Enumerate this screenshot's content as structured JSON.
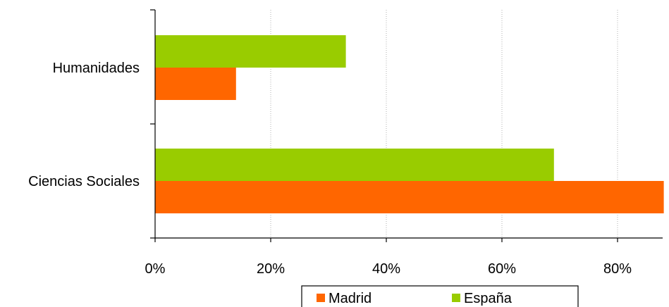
{
  "chart_data": {
    "type": "bar",
    "orientation": "horizontal",
    "categories": [
      "Humanidades",
      "Ciencias Sociales"
    ],
    "series": [
      {
        "name": "Madrid",
        "color": "#ff6600",
        "values": [
          14,
          88
        ]
      },
      {
        "name": "España",
        "color": "#99cc00",
        "values": [
          33,
          69
        ]
      }
    ],
    "xlim": [
      0,
      88
    ],
    "x_ticks": [
      0,
      20,
      40,
      60,
      80
    ],
    "x_tick_labels": [
      "0%",
      "20%",
      "40%",
      "60%",
      "80%"
    ],
    "grid": "vertical dotted",
    "legend_position": "bottom",
    "title": "",
    "xlabel": "",
    "ylabel": ""
  }
}
